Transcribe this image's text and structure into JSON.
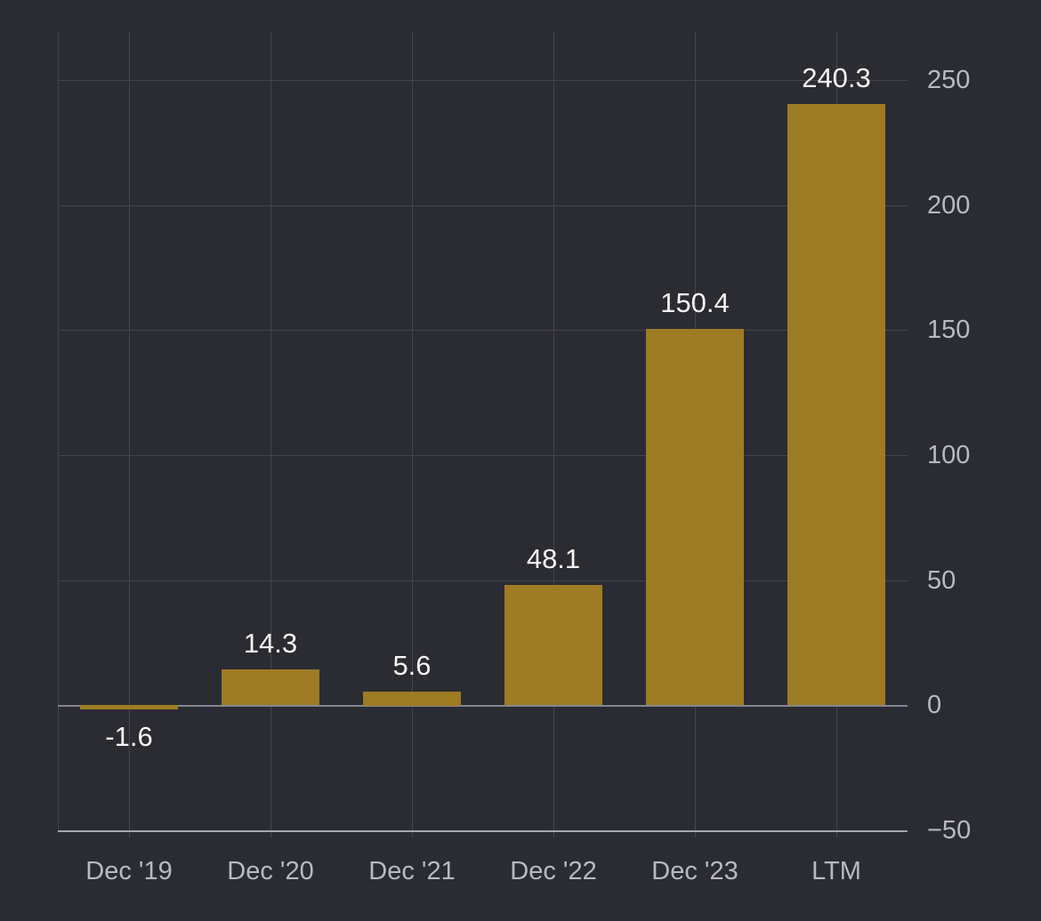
{
  "chart_data": {
    "type": "bar",
    "title": "",
    "xlabel": "",
    "ylabel": "",
    "categories": [
      "Dec '19",
      "Dec '20",
      "Dec '21",
      "Dec '22",
      "Dec '23",
      "LTM"
    ],
    "values": [
      -1.6,
      14.3,
      5.6,
      48.1,
      150.4,
      240.3
    ],
    "value_labels": [
      "-1.6",
      "14.3",
      "5.6",
      "48.1",
      "150.4",
      "240.3"
    ],
    "ylim": [
      -50,
      250
    ],
    "yticks": [
      250,
      200,
      150,
      100,
      50,
      0,
      -50
    ],
    "grid": true,
    "legend": false,
    "colors": {
      "background": "#2b2b33",
      "bar": "#9d7c23",
      "value_label": "#f7f7f8",
      "axis_text": "#b9b9c1",
      "gridline": "#45454e",
      "zero_line": "#85858d",
      "axis_line": "#a6a6ae"
    }
  }
}
